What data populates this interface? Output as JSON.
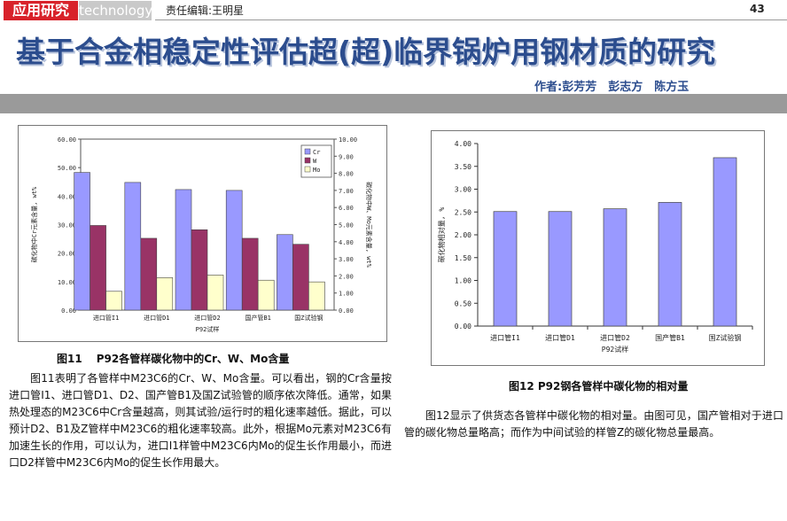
{
  "header": {
    "section_cn": "应用研究",
    "section_en": "technology",
    "editor": "责任编辑:王明星",
    "page_number": "43"
  },
  "article": {
    "title": "基于合金相稳定性评估超(超)临界锅炉用钢材质的研究",
    "authors": "作者:彭芳芳　彭志方　陈方玉"
  },
  "figure11": {
    "caption_num": "图11",
    "caption": "P92各管样碳化物中的Cr、W、Mo含量",
    "chart_data": {
      "type": "bar",
      "categories": [
        "进口管I1",
        "进口管D1",
        "进口管D2",
        "国产管B1",
        "国Z试验钢"
      ],
      "xlabel": "P92试样",
      "ylabel": "碳化物中Cr元素含量, wt%",
      "y2label": "碳化物中W、Mo元素含量, wt%",
      "ylim": [
        0,
        60
      ],
      "y2lim": [
        0,
        10
      ],
      "yticks": [
        "0.00",
        "10.00",
        "20.00",
        "30.00",
        "40.00",
        "50.00",
        "60.00"
      ],
      "y2ticks": [
        "0.00",
        "1.00",
        "2.00",
        "3.00",
        "4.00",
        "5.00",
        "6.00",
        "7.00",
        "8.00",
        "9.00",
        "10.00"
      ],
      "legend_position": "top-right",
      "series": [
        {
          "name": "Cr",
          "axis": "left",
          "color": "#9999ff",
          "values": [
            48.3,
            44.8,
            42.3,
            42.0,
            26.5
          ]
        },
        {
          "name": "W",
          "axis": "right",
          "color": "#993366",
          "values": [
            4.95,
            4.2,
            4.7,
            4.2,
            3.85
          ]
        },
        {
          "name": "Mo",
          "axis": "right",
          "color": "#ffffcc",
          "values": [
            1.1,
            1.9,
            2.05,
            1.75,
            1.65
          ]
        }
      ]
    }
  },
  "figure12": {
    "caption": "图12 P92钢各管样中碳化物的相对量",
    "chart_data": {
      "type": "bar",
      "categories": [
        "进口管I1",
        "进口管D1",
        "进口管D2",
        "国产管B1",
        "国Z试验钢"
      ],
      "xlabel": "P92试样",
      "ylabel": "碳化物相对量, %",
      "ylim": [
        0,
        4
      ],
      "yticks": [
        "0.00",
        "0.50",
        "1.00",
        "1.50",
        "2.00",
        "2.50",
        "3.00",
        "3.50",
        "4.00"
      ],
      "grid": false,
      "series": [
        {
          "color": "#9999ff",
          "values": [
            2.51,
            2.51,
            2.57,
            2.71,
            3.69
          ]
        }
      ]
    }
  },
  "body": {
    "para1": "图11表明了各管样中M23C6的Cr、W、Mo含量。可以看出，钢的Cr含量按进口管I1、进口管D1、D2、国产管B1及国Z试验管的顺序依次降低。通常，如果热处理态的M23C6中Cr含量越高，则其试验/运行时的粗化速率越低。据此，可以预计D2、B1及Z管样中M23C6的粗化速率较高。此外，根据Mo元素对M23C6有加速生长的作用，可以认为，进口I1样管中M23C6内Mo的促生长作用最小，而进口D2样管中M23C6内Mo的促生长作用最大。",
    "para2": "图12显示了供货态各管样中碳化物的相对量。由图可见，国产管相对于进口管的碳化物总量略高；而作为中间试验的样管Z的碳化物总量最高。"
  }
}
